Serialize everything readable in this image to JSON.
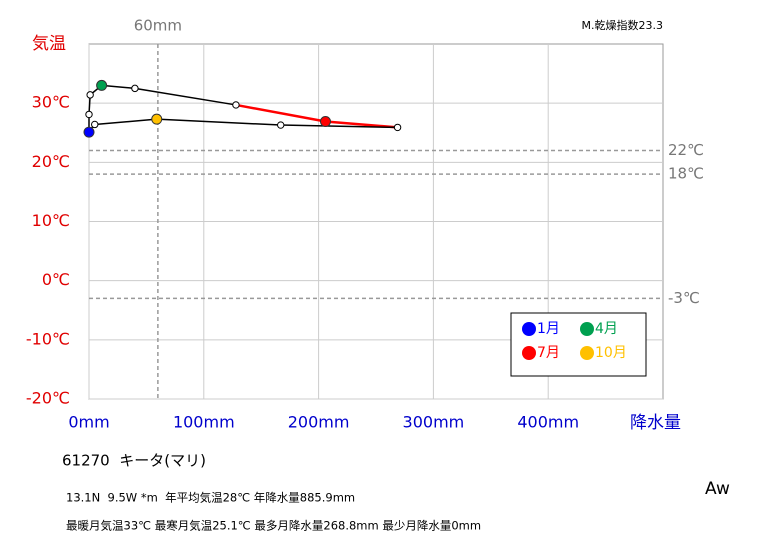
{
  "chart_data": {
    "type": "hythergraph",
    "y_label": "気温",
    "x_label": "降水量",
    "index_label": "M.乾燥指数23.3",
    "x": [
      0,
      0,
      1,
      11,
      40,
      128,
      206,
      268.8,
      167,
      59,
      5,
      0
    ],
    "values": [
      25.1,
      28.1,
      31.4,
      33,
      32.5,
      29.7,
      26.9,
      25.9,
      26.3,
      27.3,
      26.4,
      25.3
    ],
    "point_colors": [
      "#0000ff",
      null,
      null,
      "#00a050",
      null,
      null,
      "#ff0000",
      null,
      null,
      "#ffc000",
      null,
      null
    ],
    "line_colors": [
      "#000000",
      "#000000",
      "#000000",
      "#000000",
      "#000000",
      "#ff0000",
      "#ff0000",
      "#000000",
      "#000000",
      "#000000",
      "#000000",
      "#0000ff"
    ],
    "xlim": [
      0,
      500
    ],
    "ylim": [
      -20,
      40
    ],
    "xticks": [
      {
        "value": 0,
        "label": "0mm"
      },
      {
        "value": 100,
        "label": "100mm"
      },
      {
        "value": 200,
        "label": "200mm"
      },
      {
        "value": 300,
        "label": "300mm"
      },
      {
        "value": 400,
        "label": "400mm"
      }
    ],
    "yticks": [
      {
        "value": 30,
        "label": "30℃"
      },
      {
        "value": 20,
        "label": "20℃"
      },
      {
        "value": 10,
        "label": "10℃"
      },
      {
        "value": 0,
        "label": "0℃"
      },
      {
        "value": -10,
        "label": "-10℃"
      },
      {
        "value": -20,
        "label": "-20℃"
      }
    ],
    "y_refs": [
      {
        "value": 22,
        "label": "22℃"
      },
      {
        "value": 18,
        "label": "18℃"
      },
      {
        "value": -3,
        "label": "-3℃"
      }
    ],
    "x_refs": [
      {
        "value": 60,
        "label": "60mm"
      }
    ],
    "legend": [
      {
        "name": "1月",
        "color": "#0000ff"
      },
      {
        "name": "4月",
        "color": "#00a050"
      },
      {
        "name": "7月",
        "color": "#ff0000"
      },
      {
        "name": "10月",
        "color": "#ffc000"
      }
    ],
    "grid": true
  },
  "station": "61270  キータ(マリ)",
  "info_line1": "13.1N  9.5W *m  年平均気温28℃ 年降水量885.9mm",
  "info_line2": "最暖月気温33℃ 最寒月気温25.1℃ 最多月降水量268.8mm 最少月降水量0mm",
  "climate": "Aw"
}
